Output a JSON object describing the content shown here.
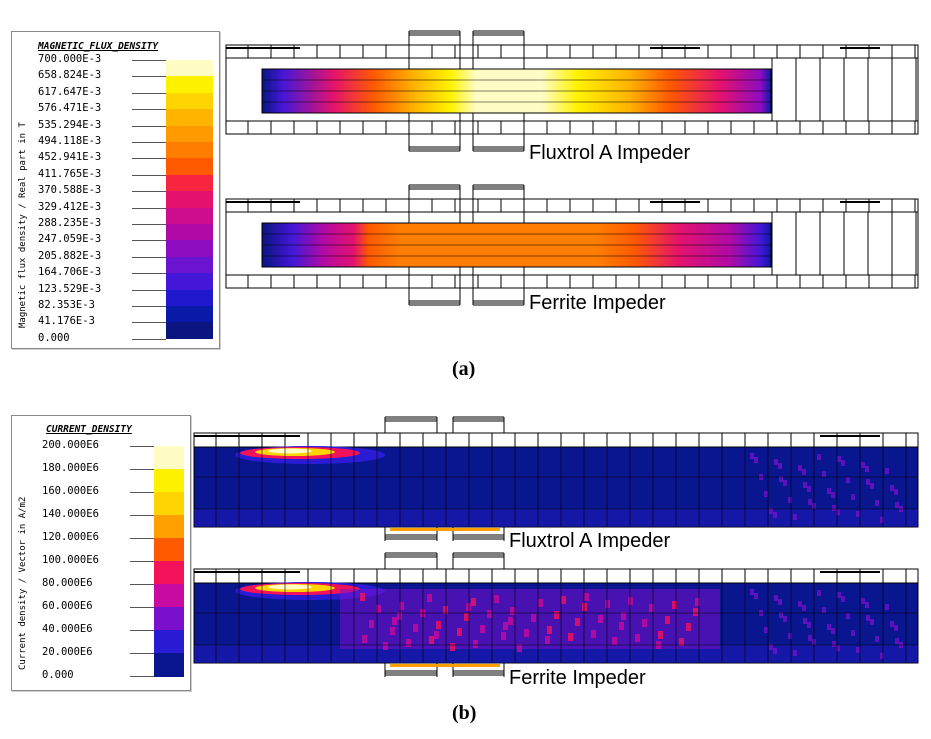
{
  "panel_a": {
    "label": "(a)",
    "legend": {
      "title": "MAGNETIC_FLUX_DENSITY",
      "quantity_label": "Magnetic flux density / Real part in T",
      "ticks": [
        "700.000E-3",
        "658.824E-3",
        "617.647E-3",
        "576.471E-3",
        "535.294E-3",
        "494.118E-3",
        "452.941E-3",
        "411.765E-3",
        "370.588E-3",
        "329.412E-3",
        "288.235E-3",
        "247.059E-3",
        "205.882E-3",
        "164.706E-3",
        "123.529E-3",
        "82.353E-3",
        "41.176E-3",
        "0.000"
      ],
      "colors": [
        "#fffcc4",
        "#fff200",
        "#ffd400",
        "#ffb400",
        "#ff9a00",
        "#ff7d00",
        "#ff5a00",
        "#f7253e",
        "#e4126e",
        "#cc0e8e",
        "#b00aa6",
        "#8d0cc0",
        "#6a14d0",
        "#4417d8",
        "#2018cc",
        "#0a1aa8",
        "#0a1580"
      ]
    },
    "plots": [
      {
        "caption": "Fluxtrol A Impeder",
        "colormap": "flux_fluxtrol"
      },
      {
        "caption": "Ferrite Impeder",
        "colormap": "flux_ferrite"
      }
    ]
  },
  "panel_b": {
    "label": "(b)",
    "legend": {
      "title": "CURRENT_DENSITY",
      "quantity_label": "Current density / Vector in A/m2",
      "ticks": [
        "200.000E6",
        "180.000E6",
        "160.000E6",
        "140.000E6",
        "120.000E6",
        "100.000E6",
        "80.000E6",
        "60.000E6",
        "40.000E6",
        "20.000E6",
        "0.000"
      ],
      "colors": [
        "#fffcc4",
        "#fff200",
        "#ffd400",
        "#ffa000",
        "#ff5a00",
        "#f4125a",
        "#c80aa0",
        "#7a10cc",
        "#2a1cd4",
        "#0a1690"
      ]
    },
    "plots": [
      {
        "caption": "Fluxtrol A Impeder",
        "colormap": "current_fluxtrol"
      },
      {
        "caption": "Ferrite Impeder",
        "colormap": "current_ferrite"
      }
    ]
  }
}
